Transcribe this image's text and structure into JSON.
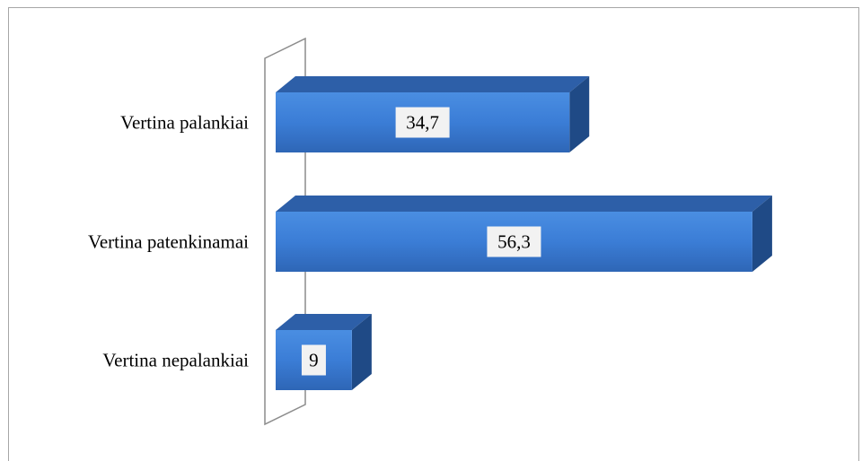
{
  "chart_data": {
    "type": "bar",
    "orientation": "horizontal",
    "three_d": true,
    "categories": [
      "Vertina palankiai",
      "Vertina patenkinamai",
      "Vertina nepalankiai"
    ],
    "values": [
      34.7,
      56.3,
      9
    ],
    "value_labels": [
      "34,7",
      "56,3",
      "9"
    ],
    "title": "",
    "xlabel": "",
    "ylabel": "",
    "xlim": [
      0,
      60
    ],
    "grid": false,
    "legend": "none",
    "colors": {
      "bar_front": "#3d7fd6",
      "bar_top": "#2d5fa8",
      "bar_side": "#1f4a86",
      "label_box": "#f2f2f2",
      "frame": "#a6a6a6"
    }
  }
}
